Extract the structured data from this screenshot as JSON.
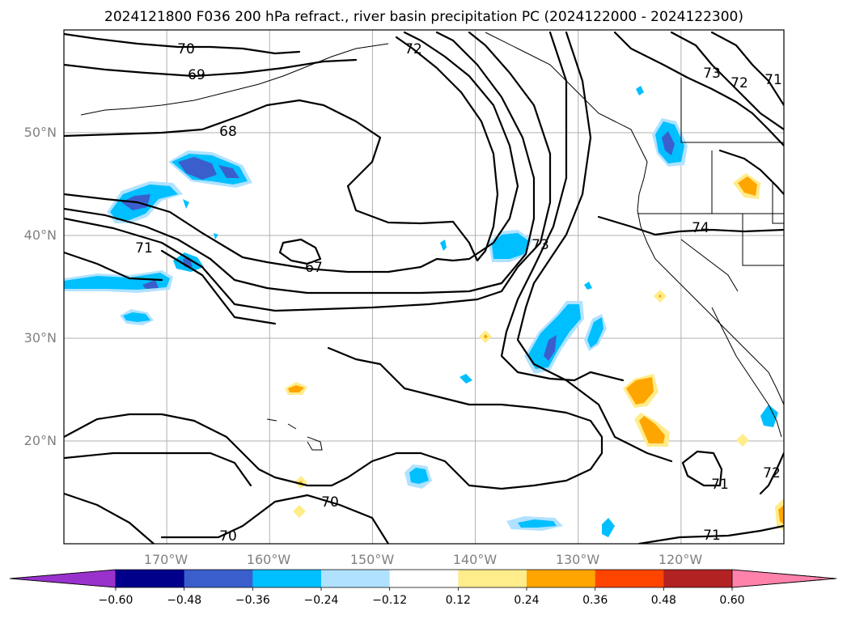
{
  "chart_data": {
    "type": "contour_map",
    "title": "2024121800 F036 200 hPa refract., river basin precipitation PC (2024122000 - 2024122300)",
    "x_ticks": [
      "170°W",
      "160°W",
      "150°W",
      "140°W",
      "130°W",
      "120°W"
    ],
    "y_ticks": [
      "50°N",
      "40°N",
      "30°N",
      "20°N"
    ],
    "lon_range": [
      -180,
      -110
    ],
    "lat_range": [
      10,
      60
    ],
    "grid": true,
    "contour_levels": [
      "67",
      "68",
      "69",
      "70",
      "71",
      "72",
      "73",
      "74"
    ],
    "colorbar": {
      "ticks": [
        "−0.60",
        "−0.48",
        "−0.36",
        "−0.24",
        "−0.12",
        "0.12",
        "0.24",
        "0.36",
        "0.48",
        "0.60"
      ],
      "bounds": [
        -0.6,
        -0.48,
        -0.36,
        -0.24,
        -0.12,
        0.12,
        0.24,
        0.36,
        0.48,
        0.6
      ],
      "colors": [
        "#9932cc",
        "#00008b",
        "#3a5fcd",
        "#00bfff",
        "#b0e2ff",
        "#ffffff",
        "#ffec8b",
        "#ffa500",
        "#ff4500",
        "#b22222",
        "#ff82ab"
      ],
      "extend": "both"
    },
    "contour_label_values": [
      "70",
      "69",
      "68",
      "67",
      "71",
      "72",
      "73",
      "74",
      "70",
      "71",
      "72",
      "73",
      "71",
      "70",
      "71",
      "72"
    ]
  }
}
